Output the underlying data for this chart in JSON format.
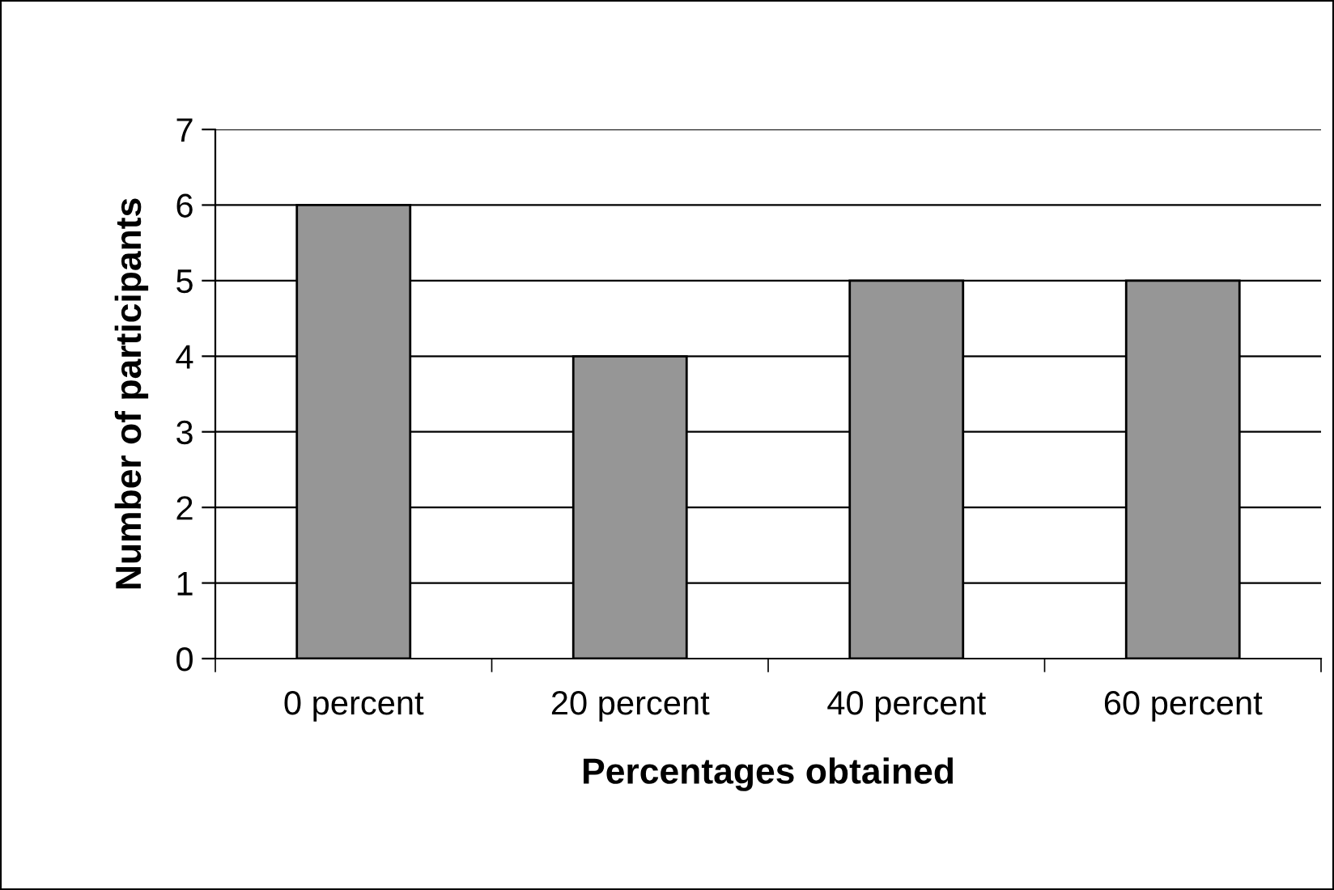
{
  "chart_data": {
    "type": "bar",
    "xlabel": "Percentages obtained",
    "ylabel": "Number of participants",
    "categories": [
      "0 percent",
      "20 percent",
      "40 percent",
      "60 percent"
    ],
    "values": [
      6,
      4,
      5,
      5
    ],
    "color": "#969696",
    "ylim": [
      0,
      7
    ],
    "yticks": [
      0,
      1,
      2,
      3,
      4,
      5,
      6,
      7
    ],
    "grid": "y",
    "legend": false
  }
}
